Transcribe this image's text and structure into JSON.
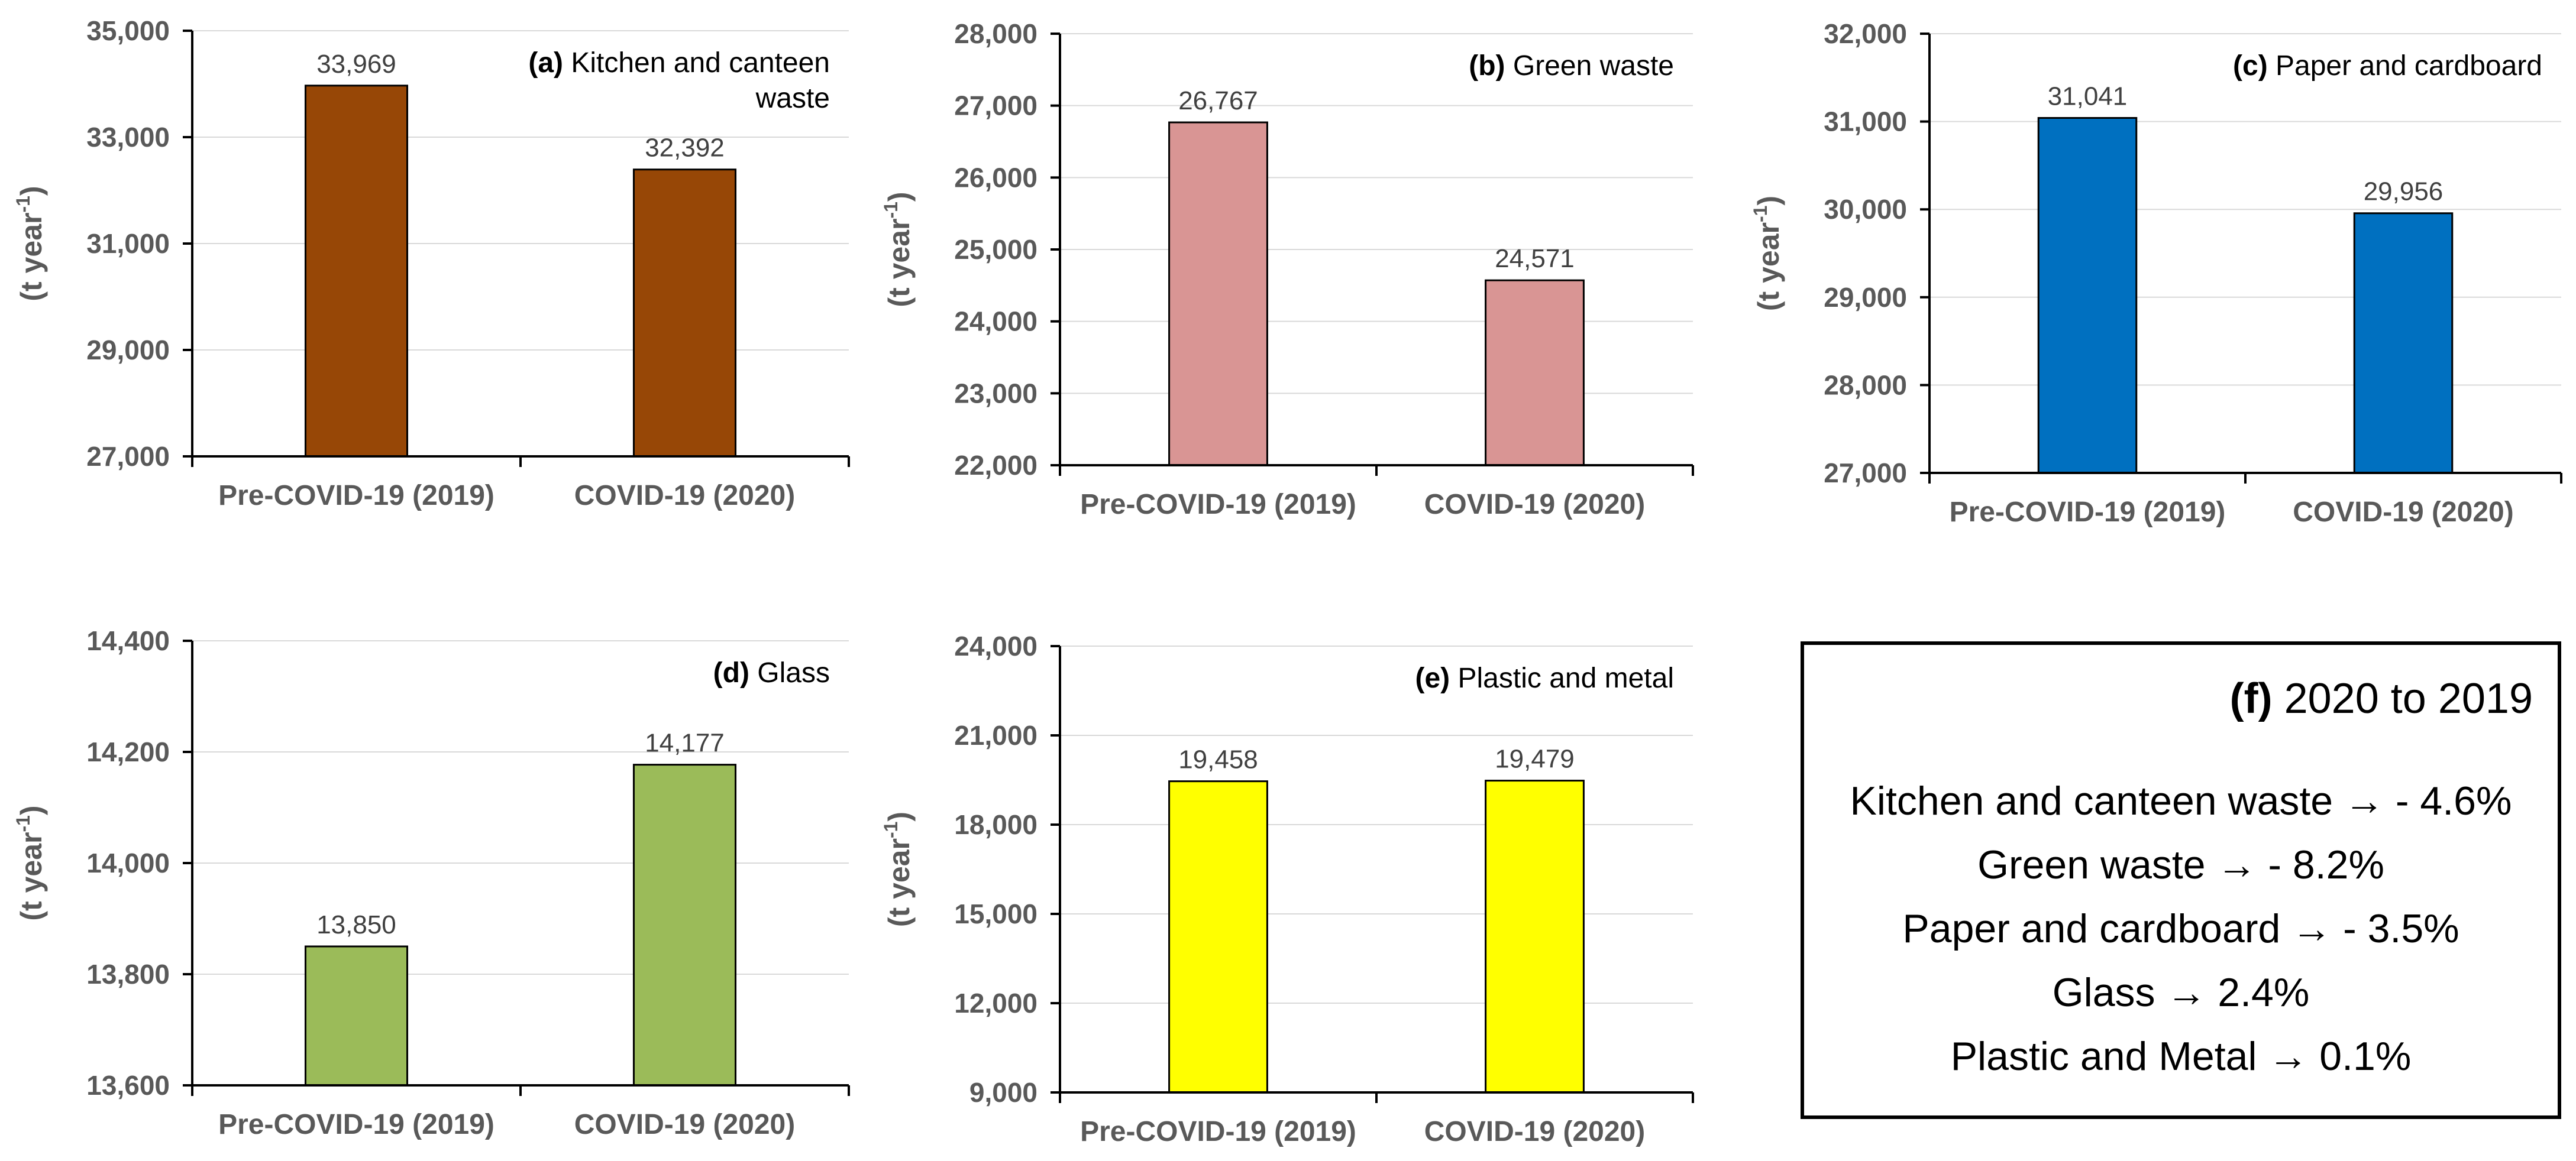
{
  "chart_data": [
    {
      "type": "bar",
      "panel_label": "(a)",
      "title": "Kitchen and canteen",
      "title_line2": "waste",
      "ylabel": "(t year-1)",
      "categories": [
        "Pre-COVID-19 (2019)",
        "COVID-19 (2020)"
      ],
      "values": [
        33969,
        32392
      ],
      "value_labels": [
        "33,969",
        "32,392"
      ],
      "ylim": [
        27000,
        35000
      ],
      "yticks": [
        27000,
        29000,
        31000,
        33000,
        35000
      ],
      "ytick_labels": [
        "27,000",
        "29,000",
        "31,000",
        "33,000",
        "35,000"
      ],
      "color": "#974706",
      "grid": true
    },
    {
      "type": "bar",
      "panel_label": "(b)",
      "title": "Green waste",
      "ylabel": "(t year-1)",
      "categories": [
        "Pre-COVID-19 (2019)",
        "COVID-19 (2020)"
      ],
      "values": [
        26767,
        24571
      ],
      "value_labels": [
        "26,767",
        "24,571"
      ],
      "ylim": [
        22000,
        28000
      ],
      "yticks": [
        22000,
        23000,
        24000,
        25000,
        26000,
        27000,
        28000
      ],
      "ytick_labels": [
        "22,000",
        "23,000",
        "24,000",
        "25,000",
        "26,000",
        "27,000",
        "28,000"
      ],
      "color": "#D99594",
      "grid": true
    },
    {
      "type": "bar",
      "panel_label": "(c)",
      "title": "Paper and cardboard",
      "ylabel": "(t year-1)",
      "categories": [
        "Pre-COVID-19 (2019)",
        "COVID-19 (2020)"
      ],
      "values": [
        31041,
        29956
      ],
      "value_labels": [
        "31,041",
        "29,956"
      ],
      "ylim": [
        27000,
        32000
      ],
      "yticks": [
        27000,
        28000,
        29000,
        30000,
        31000,
        32000
      ],
      "ytick_labels": [
        "27,000",
        "28,000",
        "29,000",
        "30,000",
        "31,000",
        "32,000"
      ],
      "color": "#0070C0",
      "grid": true
    },
    {
      "type": "bar",
      "panel_label": "(d)",
      "title": "Glass",
      "ylabel": "(t year-1)",
      "categories": [
        "Pre-COVID-19 (2019)",
        "COVID-19 (2020)"
      ],
      "values": [
        13850,
        14177
      ],
      "value_labels": [
        "13,850",
        "14,177"
      ],
      "ylim": [
        13600,
        14400
      ],
      "yticks": [
        13600,
        13800,
        14000,
        14200,
        14400
      ],
      "ytick_labels": [
        "13,600",
        "13,800",
        "14,000",
        "14,200",
        "14,400"
      ],
      "color": "#9BBB59",
      "grid": true
    },
    {
      "type": "bar",
      "panel_label": "(e)",
      "title": "Plastic and metal",
      "ylabel": "(t year-1)",
      "categories": [
        "Pre-COVID-19 (2019)",
        "COVID-19 (2020)"
      ],
      "values": [
        19458,
        19479
      ],
      "value_labels": [
        "19,458",
        "19,479"
      ],
      "ylim": [
        9000,
        24000
      ],
      "yticks": [
        9000,
        12000,
        15000,
        18000,
        21000,
        24000
      ],
      "ytick_labels": [
        "9,000",
        "12,000",
        "15,000",
        "18,000",
        "21,000",
        "24,000"
      ],
      "color": "#FFFF00",
      "grid": true
    }
  ],
  "summary_box": {
    "label": "(f)",
    "title": "2020 to 2019",
    "lines": [
      "Kitchen and canteen waste → - 4.6%",
      "Green waste → - 8.2%",
      "Paper and cardboard → - 3.5%",
      "Glass → 2.4%",
      "Plastic and Metal → 0.1%"
    ]
  }
}
